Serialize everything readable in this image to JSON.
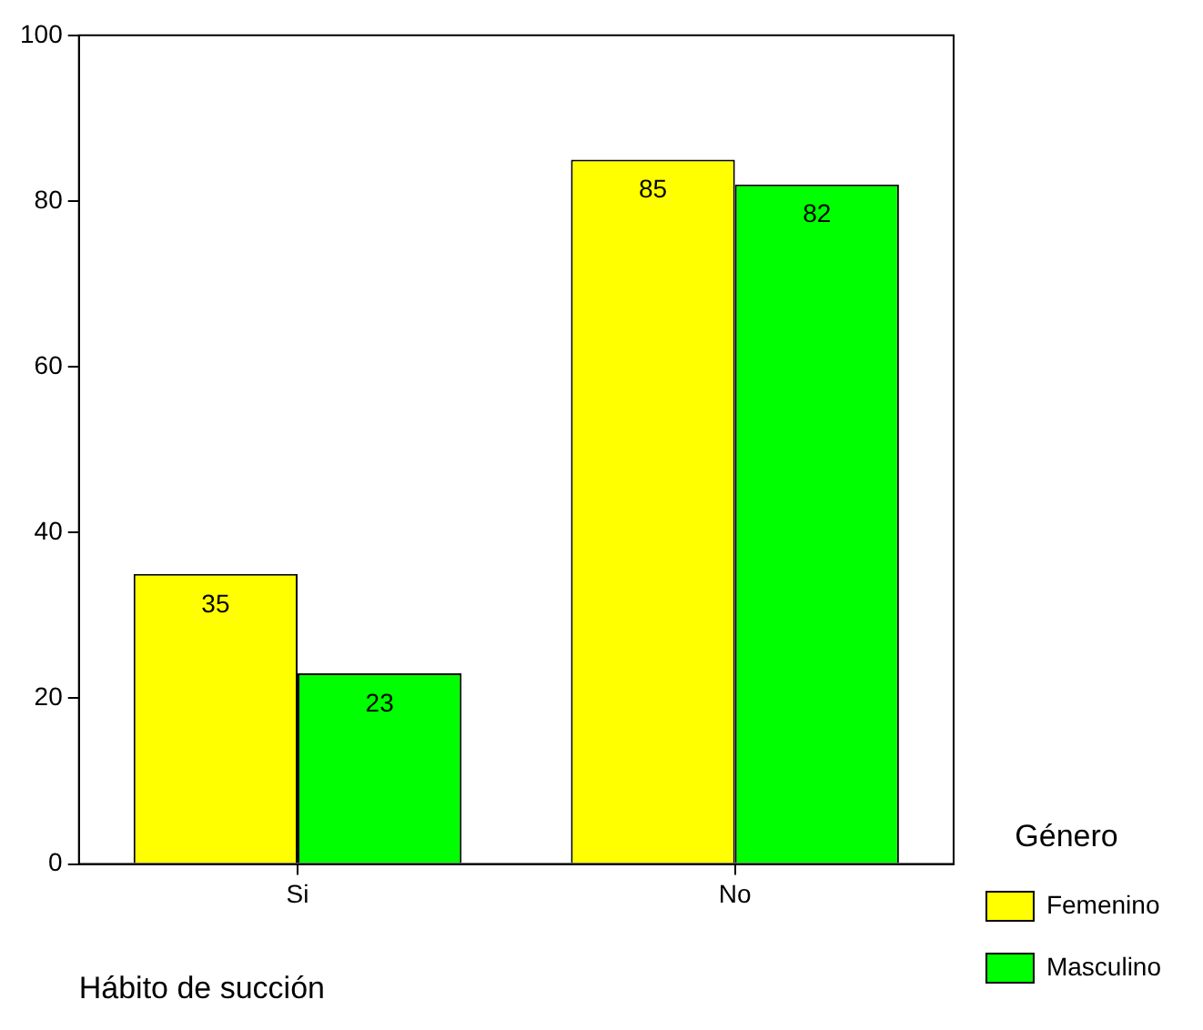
{
  "chart_data": {
    "type": "bar",
    "xlabel": "Hábito de succión",
    "legend_title": "Género",
    "categories": [
      "Si",
      "No"
    ],
    "series": [
      {
        "name": "Femenino",
        "color": "#ffff00",
        "values": [
          35,
          85
        ]
      },
      {
        "name": "Masculino",
        "color": "#00ff00",
        "values": [
          23,
          82
        ]
      }
    ],
    "ylim": [
      0,
      100
    ],
    "yticks": [
      0,
      20,
      40,
      60,
      80,
      100
    ],
    "grid": false,
    "legend": "right",
    "data_labels": true
  }
}
